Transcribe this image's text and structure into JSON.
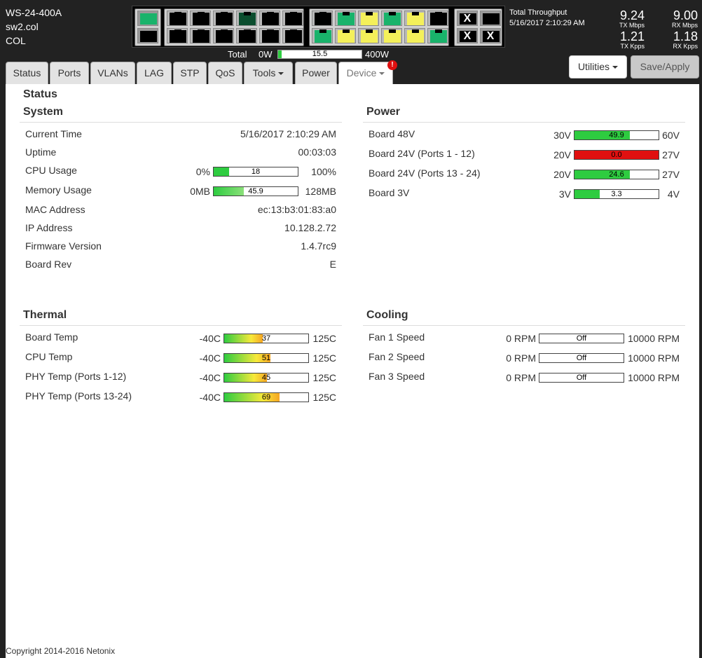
{
  "device": {
    "model": "WS-24-400A",
    "hostname": "sw2.col",
    "location": "COL"
  },
  "ports": {
    "g1": [
      {
        "row": 0,
        "col": 0,
        "state": "green",
        "kind": "sfp"
      },
      {
        "row": 1,
        "col": 0,
        "state": "off",
        "kind": "sfp"
      }
    ],
    "g2": [
      {
        "row": 0,
        "col": 0,
        "state": "off"
      },
      {
        "row": 0,
        "col": 1,
        "state": "off"
      },
      {
        "row": 0,
        "col": 2,
        "state": "off"
      },
      {
        "row": 0,
        "col": 3,
        "state": "dark-green"
      },
      {
        "row": 0,
        "col": 4,
        "state": "off"
      },
      {
        "row": 0,
        "col": 5,
        "state": "off"
      },
      {
        "row": 1,
        "col": 0,
        "state": "off"
      },
      {
        "row": 1,
        "col": 1,
        "state": "off"
      },
      {
        "row": 1,
        "col": 2,
        "state": "off"
      },
      {
        "row": 1,
        "col": 3,
        "state": "off"
      },
      {
        "row": 1,
        "col": 4,
        "state": "off"
      },
      {
        "row": 1,
        "col": 5,
        "state": "off"
      }
    ],
    "g3": [
      {
        "row": 0,
        "col": 0,
        "state": "off"
      },
      {
        "row": 0,
        "col": 1,
        "state": "green"
      },
      {
        "row": 0,
        "col": 2,
        "state": "yellow"
      },
      {
        "row": 0,
        "col": 3,
        "state": "green"
      },
      {
        "row": 0,
        "col": 4,
        "state": "yellow"
      },
      {
        "row": 0,
        "col": 5,
        "state": "off"
      },
      {
        "row": 1,
        "col": 0,
        "state": "green"
      },
      {
        "row": 1,
        "col": 1,
        "state": "yellow"
      },
      {
        "row": 1,
        "col": 2,
        "state": "yellow"
      },
      {
        "row": 1,
        "col": 3,
        "state": "yellow"
      },
      {
        "row": 1,
        "col": 4,
        "state": "yellow"
      },
      {
        "row": 1,
        "col": 5,
        "state": "green"
      }
    ],
    "g4": [
      {
        "row": 0,
        "col": 0,
        "state": "disabled",
        "kind": "sfp",
        "mark": "X"
      },
      {
        "row": 0,
        "col": 1,
        "state": "off",
        "kind": "sfp"
      },
      {
        "row": 1,
        "col": 0,
        "state": "disabled",
        "kind": "sfp",
        "mark": "X"
      },
      {
        "row": 1,
        "col": 1,
        "state": "disabled",
        "kind": "sfp",
        "mark": "X"
      }
    ]
  },
  "throughput": {
    "title": "Total Throughput",
    "timestamp": "5/16/2017 2:10:29 AM",
    "tx_mbps": "9.24",
    "tx_mbps_label": "TX Mbps",
    "rx_mbps": "9.00",
    "rx_mbps_label": "RX Mbps",
    "tx_kpps": "1.21",
    "tx_kpps_label": "TX Kpps",
    "rx_kpps": "1.18",
    "rx_kpps_label": "RX Kpps"
  },
  "power_total": {
    "label": "Total",
    "min": "0W",
    "max": "400W",
    "value": "15.5",
    "fraction": 0.039
  },
  "tabs": [
    {
      "label": "Status"
    },
    {
      "label": "Ports"
    },
    {
      "label": "VLANs"
    },
    {
      "label": "LAG"
    },
    {
      "label": "STP"
    },
    {
      "label": "QoS"
    },
    {
      "label": "Tools"
    },
    {
      "label": "Power"
    },
    {
      "label": "Device"
    }
  ],
  "device_badge": "!",
  "buttons": {
    "utilities": "Utilities",
    "save": "Save/Apply"
  },
  "page_title": "Status",
  "system": {
    "title": "System",
    "rows": [
      {
        "label": "Current Time",
        "value": "5/16/2017 2:10:29 AM"
      },
      {
        "label": "Uptime",
        "value": "00:03:03"
      },
      {
        "label": "CPU Usage",
        "min": "0%",
        "max": "100%",
        "meter": "18",
        "fraction": 0.18,
        "color": "#2ecc40"
      },
      {
        "label": "Memory Usage",
        "min": "0MB",
        "max": "128MB",
        "meter": "45.9",
        "fraction": 0.36,
        "color": "gradient-green"
      },
      {
        "label": "MAC Address",
        "value": "ec:13:b3:01:83:a0"
      },
      {
        "label": "IP Address",
        "value": "10.128.2.72"
      },
      {
        "label": "Firmware Version",
        "value": "1.4.7rc9"
      },
      {
        "label": "Board Rev",
        "value": "E"
      }
    ]
  },
  "power": {
    "title": "Power",
    "rows": [
      {
        "label": "Board 48V",
        "min": "30V",
        "max": "60V",
        "meter": "49.9",
        "fraction": 0.66,
        "color": "#2ecc40"
      },
      {
        "label": "Board 24V (Ports 1 - 12)",
        "min": "20V",
        "max": "27V",
        "meter": "0.0",
        "fraction": 1.0,
        "color": "#e01010"
      },
      {
        "label": "Board 24V (Ports 13 - 24)",
        "min": "20V",
        "max": "27V",
        "meter": "24.6",
        "fraction": 0.66,
        "color": "#2ecc40"
      },
      {
        "label": "Board 3V",
        "min": "3V",
        "max": "4V",
        "meter": "3.3",
        "fraction": 0.3,
        "color": "#2ecc40"
      }
    ]
  },
  "thermal": {
    "title": "Thermal",
    "rows": [
      {
        "label": "Board Temp",
        "min": "-40C",
        "max": "125C",
        "meter": "37",
        "fraction": 0.46,
        "color": "gradient-temp"
      },
      {
        "label": "CPU Temp",
        "min": "-40C",
        "max": "125C",
        "meter": "51",
        "fraction": 0.55,
        "color": "gradient-temp"
      },
      {
        "label": "PHY Temp (Ports 1-12)",
        "min": "-40C",
        "max": "125C",
        "meter": "45",
        "fraction": 0.51,
        "color": "gradient-temp"
      },
      {
        "label": "PHY Temp (Ports 13-24)",
        "min": "-40C",
        "max": "125C",
        "meter": "69",
        "fraction": 0.66,
        "color": "gradient-temp"
      }
    ]
  },
  "cooling": {
    "title": "Cooling",
    "rows": [
      {
        "label": "Fan 1 Speed",
        "min": "0 RPM",
        "max": "10000 RPM",
        "meter": "Off",
        "fraction": 0
      },
      {
        "label": "Fan 2 Speed",
        "min": "0 RPM",
        "max": "10000 RPM",
        "meter": "Off",
        "fraction": 0
      },
      {
        "label": "Fan 3 Speed",
        "min": "0 RPM",
        "max": "10000 RPM",
        "meter": "Off",
        "fraction": 0
      }
    ]
  },
  "footer": "Copyright 2014-2016 Netonix"
}
